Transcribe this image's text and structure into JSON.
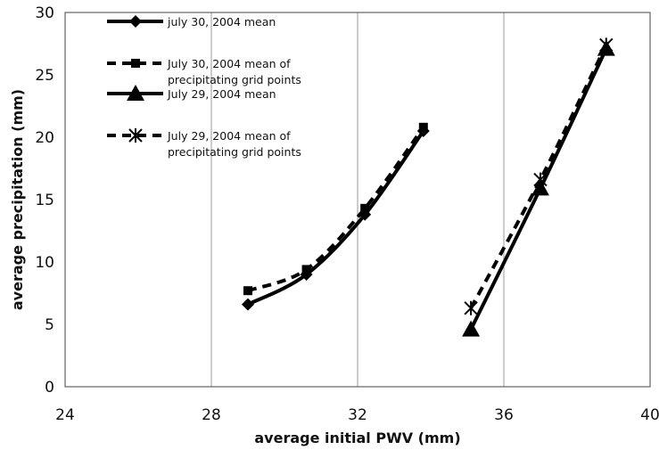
{
  "chart_data": {
    "type": "line",
    "xlabel": "average initial PWV (mm)",
    "ylabel": "average precipitation (mm)",
    "xlim": [
      24,
      40
    ],
    "ylim": [
      0,
      30
    ],
    "xticks": [
      24,
      28,
      32,
      36,
      40
    ],
    "yticks": [
      0,
      5,
      10,
      15,
      20,
      25,
      30
    ],
    "xtick_labels": [
      "24",
      "28",
      "32",
      "36",
      "40"
    ],
    "ytick_labels": [
      "0",
      "5",
      "10",
      "15",
      "20",
      "25",
      "30"
    ],
    "grid": "vertical",
    "legend_position": "top-left",
    "series": [
      {
        "name": "july 30, 2004 mean",
        "marker": "diamond",
        "dash": "solid",
        "x": [
          29.0,
          30.6,
          32.2,
          33.8
        ],
        "y": [
          6.6,
          9.0,
          13.8,
          20.5
        ]
      },
      {
        "name": "July 30, 2004 mean of precipitating grid points",
        "legend_lines": [
          "July 30, 2004 mean of",
          "precipitating grid points"
        ],
        "marker": "square",
        "dash": "dashed",
        "x": [
          29.0,
          30.6,
          32.2,
          33.8
        ],
        "y": [
          7.7,
          9.4,
          14.3,
          20.8
        ]
      },
      {
        "name": "July 29, 2004 mean",
        "marker": "triangle",
        "dash": "solid",
        "x": [
          35.1,
          37.0,
          38.8
        ],
        "y": [
          4.6,
          15.9,
          27.1
        ]
      },
      {
        "name": "July 29, 2004 mean of precipitating grid points",
        "legend_lines": [
          "July 29, 2004 mean of",
          "precipitating grid points"
        ],
        "marker": "x",
        "dash": "dashed",
        "x": [
          35.1,
          37.0,
          38.8
        ],
        "y": [
          6.3,
          16.6,
          27.4
        ]
      }
    ]
  }
}
